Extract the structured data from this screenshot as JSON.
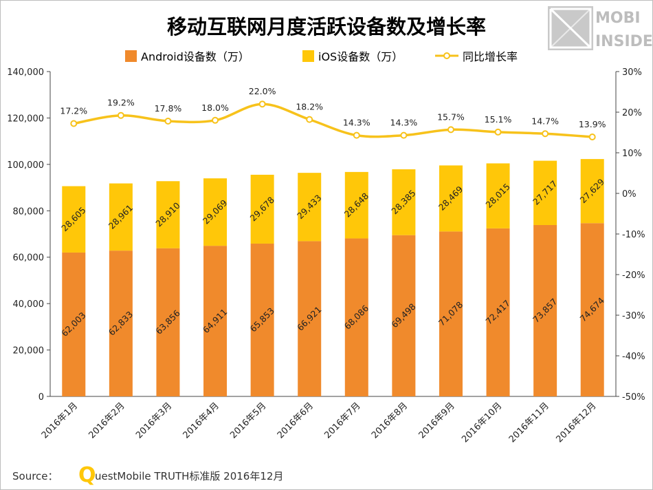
{
  "chart_data": {
    "type": "bar",
    "stacked": true,
    "title": "移动互联网月度活跃设备数及增长率",
    "categories": [
      "2016年1月",
      "2016年2月",
      "2016年3月",
      "2016年4月",
      "2016年5月",
      "2016年6月",
      "2016年7月",
      "2016年8月",
      "2016年9月",
      "2016年10月",
      "2016年11月",
      "2016年12月"
    ],
    "series": [
      {
        "name": "Android设备数（万）",
        "kind": "bar",
        "color": "#F08A2C",
        "values": [
          62003,
          62833,
          63856,
          64911,
          65853,
          66921,
          68086,
          69498,
          71078,
          72417,
          73857,
          74674
        ],
        "labels": [
          "62,003",
          "62,833",
          "63,856",
          "64,911",
          "65,853",
          "66,921",
          "68,086",
          "69,498",
          "71,078",
          "72,417",
          "73,857",
          "74,674"
        ]
      },
      {
        "name": "iOS设备数（万）",
        "kind": "bar",
        "color": "#FFC709",
        "values": [
          28605,
          28961,
          28910,
          29069,
          29678,
          29433,
          28648,
          28385,
          28469,
          28015,
          27717,
          27629
        ],
        "labels": [
          "28,605",
          "28,961",
          "28,910",
          "29,069",
          "29,678",
          "29,433",
          "28,648",
          "28,385",
          "28,469",
          "28,015",
          "27,717",
          "27,629"
        ]
      },
      {
        "name": "同比增长率",
        "kind": "line",
        "axis": "right",
        "color": "#F7C21B",
        "values": [
          17.2,
          19.2,
          17.8,
          18.0,
          22.0,
          18.2,
          14.3,
          14.3,
          15.7,
          15.1,
          14.7,
          13.9
        ],
        "labels": [
          "17.2%",
          "19.2%",
          "17.8%",
          "18.0%",
          "22.0%",
          "18.2%",
          "14.3%",
          "14.3%",
          "15.7%",
          "15.1%",
          "14.7%",
          "13.9%"
        ]
      }
    ],
    "ylim": [
      0,
      140000
    ],
    "yticks": [
      0,
      20000,
      40000,
      60000,
      80000,
      100000,
      120000,
      140000
    ],
    "yticklabels": [
      "0",
      "20,000",
      "40,000",
      "60,000",
      "80,000",
      "100,000",
      "120,000",
      "140,000"
    ],
    "y2lim": [
      -50,
      30
    ],
    "y2ticks": [
      -50,
      -40,
      -30,
      -20,
      -10,
      0,
      10,
      20,
      30
    ],
    "y2ticklabels": [
      "-50%",
      "-40%",
      "-30%",
      "-20%",
      "-10%",
      "0%",
      "10%",
      "20%",
      "30%"
    ],
    "legend": "top-center",
    "grid": false
  },
  "logo": {
    "line1": "MOBI",
    "line2": "INSIDE"
  },
  "source": {
    "prefix": "Source：",
    "brand_letter": "Q",
    "text": "uestMobile TRUTH标准版 2016年12月"
  }
}
